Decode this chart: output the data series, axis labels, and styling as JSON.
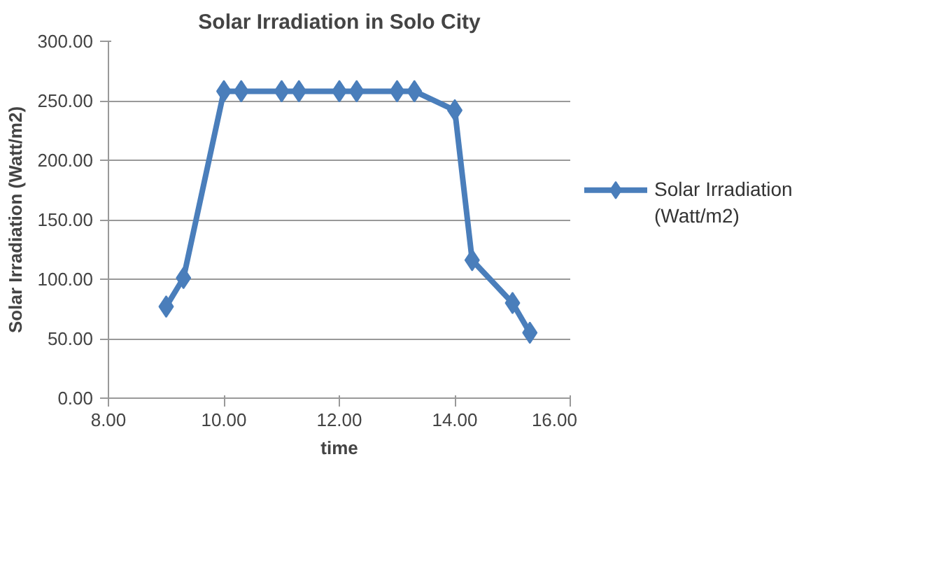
{
  "chart_data": {
    "type": "line",
    "title": "Solar Irradiation in Solo City",
    "xlabel": "time",
    "ylabel": "Solar Irradiation (Watt/m2)",
    "x": [
      9.0,
      9.3,
      10.0,
      10.3,
      11.0,
      11.3,
      12.0,
      12.3,
      13.0,
      13.3,
      14.0,
      14.3,
      15.0,
      15.3
    ],
    "series": [
      {
        "name": "Solar Irradiation (Watt/m2)",
        "color": "#4a7ebb",
        "values": [
          77,
          101,
          258,
          258,
          258,
          258,
          258,
          258,
          258,
          258,
          242,
          116,
          80,
          55
        ]
      }
    ],
    "xlim": [
      8,
      16
    ],
    "xticks": [
      {
        "value": 8,
        "label": "8.00"
      },
      {
        "value": 10,
        "label": "10.00"
      },
      {
        "value": 12,
        "label": "12.00"
      },
      {
        "value": 14,
        "label": "14.00"
      },
      {
        "value": 16,
        "label": "16.00"
      }
    ],
    "ylim": [
      0,
      300
    ],
    "yticks": [
      {
        "value": 0,
        "label": "0.00"
      },
      {
        "value": 50,
        "label": "50.00"
      },
      {
        "value": 100,
        "label": "100.00"
      },
      {
        "value": 150,
        "label": "150.00"
      },
      {
        "value": 200,
        "label": "200.00"
      },
      {
        "value": 250,
        "label": "250.00"
      },
      {
        "value": 300,
        "label": "300.00"
      }
    ],
    "grid": "y",
    "legend": "right",
    "marker": "diamond",
    "line_style": "solid"
  }
}
